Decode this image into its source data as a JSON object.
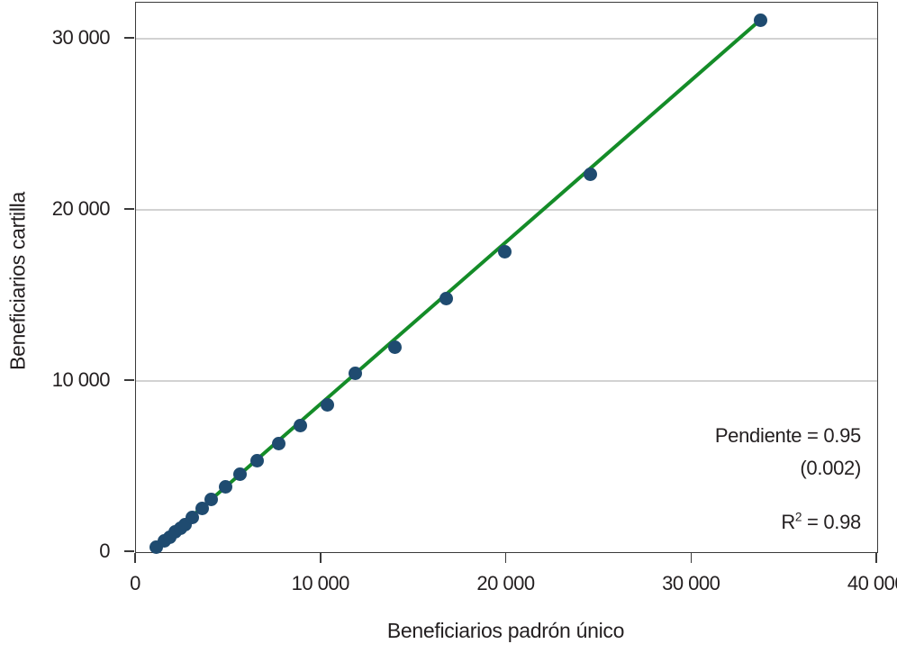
{
  "chart_data": {
    "type": "scatter",
    "title": "",
    "xlabel": "Beneficiarios padrón único",
    "ylabel": "Beneficiarios cartilla",
    "xlim": [
      0,
      40000
    ],
    "ylim": [
      0,
      32100
    ],
    "grid": "horizontal",
    "legend": "none",
    "x_ticks": [
      0,
      10000,
      20000,
      30000,
      40000
    ],
    "x_tick_labels": [
      "0",
      "10 000",
      "20 000",
      "30 000",
      "40 000"
    ],
    "y_ticks": [
      0,
      10000,
      20000,
      30000
    ],
    "y_tick_labels": [
      "0",
      "10 000",
      "20 000",
      "30 000"
    ],
    "series": [
      {
        "name": "observaciones",
        "type": "scatter",
        "color": "#1f4b70",
        "points": [
          [
            1100,
            280
          ],
          [
            1510,
            660
          ],
          [
            1840,
            890
          ],
          [
            2110,
            1180
          ],
          [
            2430,
            1420
          ],
          [
            2670,
            1630
          ],
          [
            3040,
            2000
          ],
          [
            3550,
            2560
          ],
          [
            4060,
            3090
          ],
          [
            4840,
            3790
          ],
          [
            5610,
            4530
          ],
          [
            6540,
            5320
          ],
          [
            7720,
            6330
          ],
          [
            8860,
            7380
          ],
          [
            10330,
            8580
          ],
          [
            11840,
            10460
          ],
          [
            13950,
            11950
          ],
          [
            16750,
            14790
          ],
          [
            19920,
            17560
          ],
          [
            24500,
            22090
          ],
          [
            33700,
            31100
          ]
        ]
      },
      {
        "name": "ajuste-lineal",
        "type": "line",
        "color": "#148c28",
        "from": [
          1100,
          280
        ],
        "to": [
          33700,
          31100
        ]
      }
    ],
    "annotations": {
      "slope": "Pendiente = 0.95",
      "se": "(0.002)",
      "r2_base": "R",
      "r2_sup": "2",
      "r2_rest": " = 0.98"
    }
  },
  "colors": {
    "dot": "#1f4b70",
    "line": "#148c28",
    "grid": "#d2d2d2",
    "axis": "#3a3a3a",
    "text": "#231f20"
  }
}
